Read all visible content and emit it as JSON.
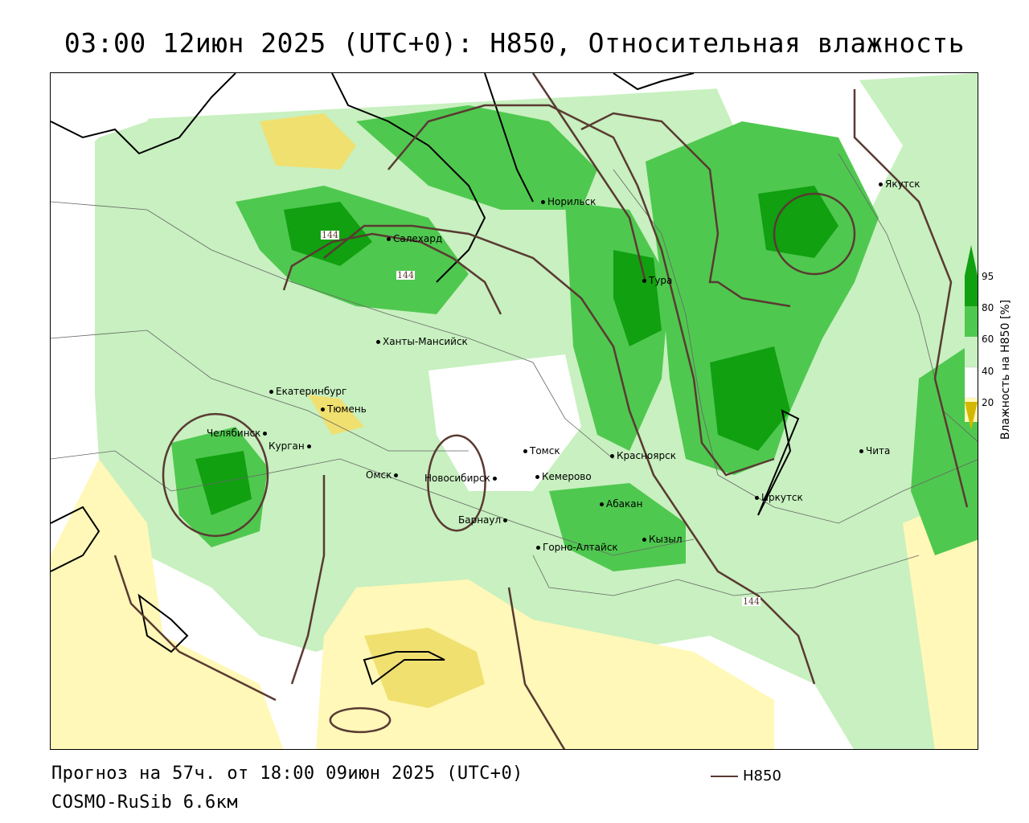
{
  "title": "03:00 12июн 2025 (UTC+0): H850, Относительная влажность",
  "footer": {
    "forecast": "Прогноз на 57ч. от 18:00 09июн 2025 (UTC+0)",
    "model": "COSMO-RuSib 6.6км"
  },
  "legend": {
    "contour_label": "H850",
    "contour_color": "#5a3a32"
  },
  "colorbar": {
    "title": "Влажность на H850 [%]",
    "ticks": [
      "95",
      "80",
      "60",
      "40",
      "20"
    ],
    "colors": {
      "very_dry": "#d4b800",
      "dry": "#f0e070",
      "low": "#fff8b8",
      "mid": "#ffffff",
      "moist": "#c8f0c0",
      "wet": "#4fc84f",
      "saturated": "#10a010"
    }
  },
  "isoline_labels": [
    "144",
    "144",
    "144"
  ],
  "cities": [
    {
      "name": "Якутск"
    },
    {
      "name": "Норильск"
    },
    {
      "name": "Салехард"
    },
    {
      "name": "Тура"
    },
    {
      "name": "Ханты-Мансийск"
    },
    {
      "name": "Екатеринбург"
    },
    {
      "name": "Тюмень"
    },
    {
      "name": "Челябинск"
    },
    {
      "name": "Курган"
    },
    {
      "name": "Омск"
    },
    {
      "name": "Томск"
    },
    {
      "name": "Красноярск"
    },
    {
      "name": "Новосибирск"
    },
    {
      "name": "Кемерово"
    },
    {
      "name": "Абакан"
    },
    {
      "name": "Иркутск"
    },
    {
      "name": "Чита"
    },
    {
      "name": "Барнаул"
    },
    {
      "name": "Кызыл"
    },
    {
      "name": "Горно-Алтайск"
    }
  ]
}
